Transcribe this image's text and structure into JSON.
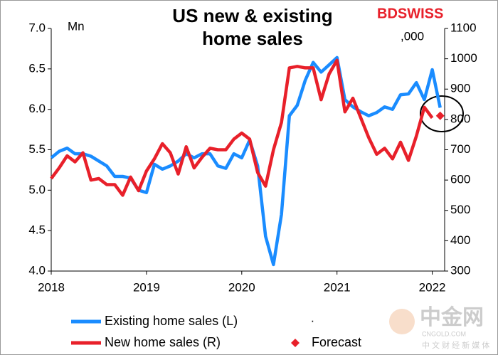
{
  "chart_data": {
    "type": "line",
    "title": "US new & existing home sales",
    "y_label": "Mn",
    "y2_label": ",000",
    "logo": "BDSWISS",
    "watermark": [
      "中金网",
      "CNGOLD.COM",
      "中 文 财 经 新 媒 体"
    ],
    "legend_extra": ".",
    "x": [
      2018,
      2018.083,
      2018.167,
      2018.25,
      2018.333,
      2018.417,
      2018.5,
      2018.583,
      2018.667,
      2018.75,
      2018.833,
      2018.917,
      2019,
      2019.083,
      2019.167,
      2019.25,
      2019.333,
      2019.417,
      2019.5,
      2019.583,
      2019.667,
      2019.75,
      2019.833,
      2019.917,
      2020,
      2020.083,
      2020.167,
      2020.25,
      2020.333,
      2020.417,
      2020.5,
      2020.583,
      2020.667,
      2020.75,
      2020.833,
      2020.917,
      2021,
      2021.083,
      2021.167,
      2021.25,
      2021.333,
      2021.417,
      2021.5,
      2021.583,
      2021.667,
      2021.75,
      2021.833,
      2021.917,
      2022,
      2022.083
    ],
    "xlim": [
      2018,
      2022.13
    ],
    "xticks": [
      2018,
      2019,
      2020,
      2021,
      2022
    ],
    "ylim": [
      4,
      7
    ],
    "yticks": [
      {
        "value": 4,
        "label": "4.0"
      },
      {
        "value": 4.5,
        "label": "4.5"
      },
      {
        "value": 5,
        "label": "5.0"
      },
      {
        "value": 5.5,
        "label": "5.5"
      },
      {
        "value": 6,
        "label": "6.0"
      },
      {
        "value": 6.5,
        "label": "6.5"
      },
      {
        "value": 7,
        "label": "7.0"
      }
    ],
    "y2lim": [
      300,
      1100
    ],
    "y2ticks": [
      300,
      400,
      500,
      600,
      700,
      800,
      900,
      1000,
      1100
    ],
    "series": [
      {
        "name": "Existing home sales (L)",
        "color": "#1a8cff",
        "values": [
          5.4,
          5.48,
          5.52,
          5.45,
          5.45,
          5.42,
          5.36,
          5.3,
          5.17,
          5.17,
          5.15,
          5.0,
          4.97,
          5.32,
          5.26,
          5.3,
          5.36,
          5.45,
          5.4,
          5.45,
          5.45,
          5.3,
          5.27,
          5.45,
          5.4,
          5.62,
          5.3,
          4.43,
          4.08,
          4.7,
          5.92,
          6.05,
          6.36,
          6.58,
          6.46,
          6.55,
          6.64,
          6.12,
          6.03,
          5.97,
          5.92,
          5.96,
          6.03,
          6.0,
          6.18,
          6.19,
          6.33,
          6.12,
          6.49,
          6.02
        ]
      },
      {
        "name": "New home sales (R)",
        "color": "#e8202a",
        "axis": "y2",
        "values": [
          605,
          640,
          680,
          660,
          690,
          600,
          605,
          585,
          585,
          550,
          610,
          565,
          630,
          670,
          720,
          690,
          620,
          710,
          640,
          675,
          705,
          700,
          700,
          735,
          755,
          735,
          625,
          580,
          700,
          790,
          970,
          975,
          970,
          970,
          865,
          950,
          995,
          825,
          870,
          805,
          740,
          685,
          705,
          670,
          725,
          665,
          745,
          840,
          805,
          null
        ]
      },
      {
        "name": "Forecast",
        "color": "#e8202a",
        "axis": "y2",
        "marker": "diamond",
        "values": [
          null,
          null,
          null,
          null,
          null,
          null,
          null,
          null,
          null,
          null,
          null,
          null,
          null,
          null,
          null,
          null,
          null,
          null,
          null,
          null,
          null,
          null,
          null,
          null,
          null,
          null,
          null,
          null,
          null,
          null,
          null,
          null,
          null,
          null,
          null,
          null,
          null,
          null,
          null,
          null,
          null,
          null,
          null,
          null,
          null,
          null,
          null,
          null,
          null,
          812
        ]
      }
    ]
  }
}
